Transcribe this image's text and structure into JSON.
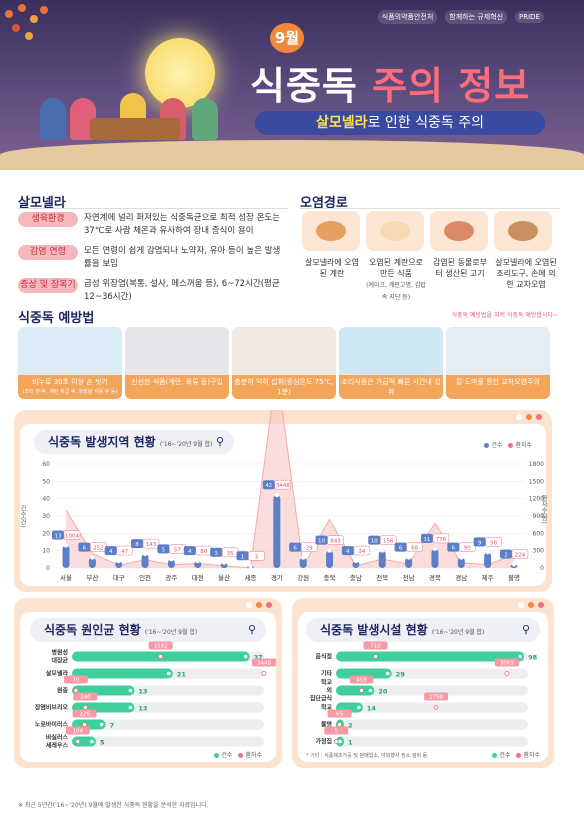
{
  "header": {
    "month": "9월",
    "title_a": "식중독",
    "title_b": "주의 정보",
    "subtitle_a": "살모넬라",
    "subtitle_b": "로 인한 식중독 주의",
    "logos": [
      "식품의약품안전처",
      "함께하는 규제혁신",
      "PRIDE"
    ]
  },
  "salmonella": {
    "title": "살모넬라",
    "rows": [
      {
        "tag": "생육환경",
        "text": "자연계에 널리 퍼져있는 식중독균으로 최적 성장 온도는 37℃로 사람 체온과 유사하여 장내 증식이 용이"
      },
      {
        "tag": "감염 연령",
        "text": "모든 연령이 쉽게 감염되나 노약자, 유아 등이 높은 발생률을 보임"
      },
      {
        "tag": "증상 및 잠복기",
        "text": "급성 위장염(복통, 설사, 메스꺼움 등), 6~72시간(평균 12~36시간)"
      }
    ]
  },
  "route": {
    "title": "오염경로",
    "items": [
      {
        "text": "살모넬라에 오염된 계란",
        "small": ""
      },
      {
        "text": "오염된 계란으로 만든 식품",
        "small": "(케이크, 계란고명, 김밥 속 지단 등)"
      },
      {
        "text": "감염된 동물로부터 생산된 고기",
        "small": ""
      },
      {
        "text": "살모넬라에 오염된 조리도구, 손에 의한 교차오염",
        "small": ""
      }
    ]
  },
  "prevention": {
    "title": "식중독 예방법",
    "note": "식중독 예방법을 지켜 식중독 예방합시다~",
    "items": [
      {
        "label": "비누로 30초 이상 손 씻기",
        "small": "(조리 전·후, 계란 취급 후, 화장실 사용 후 등)"
      },
      {
        "label": "신선한 식품(계란, 육류 등)구입",
        "small": ""
      },
      {
        "label": "충분히 익혀 섭취(중심온도 75℃, 1분)",
        "small": ""
      },
      {
        "label": "조리식품은 가급적 빠른 시간내 섭취",
        "small": ""
      },
      {
        "label": "칼·도마를 통한 교차오염주의",
        "small": ""
      }
    ]
  },
  "region_chart": {
    "title": "식중독 발생지역 현황",
    "period": "('16~'20년 9월 합)",
    "legend": [
      "건수",
      "환자수"
    ],
    "ylabel_left": "건수(건)",
    "ylabel_right": "환자수(명)"
  },
  "cause_chart": {
    "title": "식중독 원인균 현황",
    "period": "('16~'20년 9월 합)",
    "legend": [
      "건수",
      "환자수"
    ]
  },
  "facility_chart": {
    "title": "식중독 발생시설 현황",
    "period": "('16~'20년 9월 합)",
    "legend": [
      "건수",
      "환자수"
    ],
    "note": "* 기타 : 식품제조가공 및 판매업소, 야외행사 장소 설비 등"
  },
  "footnote": "※ 최근 5년간('16~'20년) 9월에 발생한 식중독 현황을 분석한 자료입니다.",
  "colors": {
    "navy": "#1d2660",
    "orange": "#f3a55a",
    "bar": "#5b7fc9",
    "pink": "#f26f7c",
    "green": "#3fcf9a"
  },
  "chart_data": [
    {
      "type": "line",
      "title": "식중독 발생지역 현황",
      "categories": [
        "서울",
        "부산",
        "대구",
        "인천",
        "광주",
        "대전",
        "울산",
        "세종",
        "경기",
        "강원",
        "충북",
        "충남",
        "전북",
        "전남",
        "경북",
        "경남",
        "제주",
        "불명"
      ],
      "series": [
        {
          "name": "건수",
          "values": [
            13,
            6,
            4,
            8,
            5,
            4,
            3,
            1,
            42,
            6,
            10,
            4,
            10,
            6,
            11,
            6,
            9,
            2
          ]
        },
        {
          "name": "환자수",
          "values": [
            1004,
            252,
            47,
            143,
            57,
            80,
            35,
            3,
            3448,
            29,
            843,
            34,
            156,
            68,
            776,
            90,
            58,
            224
          ]
        }
      ],
      "ylim": [
        0,
        60
      ],
      "y2lim": [
        0,
        1800
      ],
      "yticks": [
        0,
        10,
        20,
        30,
        40,
        50,
        60
      ],
      "y2ticks": [
        0,
        300,
        600,
        900,
        1200,
        1500,
        1800
      ]
    },
    {
      "type": "bar",
      "title": "식중독 원인균 현황",
      "categories": [
        "병원성 대장균",
        "살모넬라",
        "원충",
        "장염비브리오",
        "노로바이러스",
        "바실러스 세레우스"
      ],
      "series": [
        {
          "name": "건수",
          "values": [
            37,
            21,
            13,
            13,
            7,
            5
          ]
        },
        {
          "name": "환자수",
          "values": [
            1592,
            3448,
            70,
            240,
            226,
            104
          ]
        }
      ]
    },
    {
      "type": "bar",
      "title": "식중독 발생시설 현황",
      "categories": [
        "음식점",
        "기타",
        "학교 외 집단급식",
        "학교",
        "불명",
        "가정집"
      ],
      "series": [
        {
          "name": "건수",
          "values": [
            98,
            29,
            20,
            14,
            2,
            1
          ]
        },
        {
          "name": "환자수",
          "values": [
            710,
            3069,
            459,
            1798,
            65,
            5
          ]
        }
      ]
    }
  ]
}
